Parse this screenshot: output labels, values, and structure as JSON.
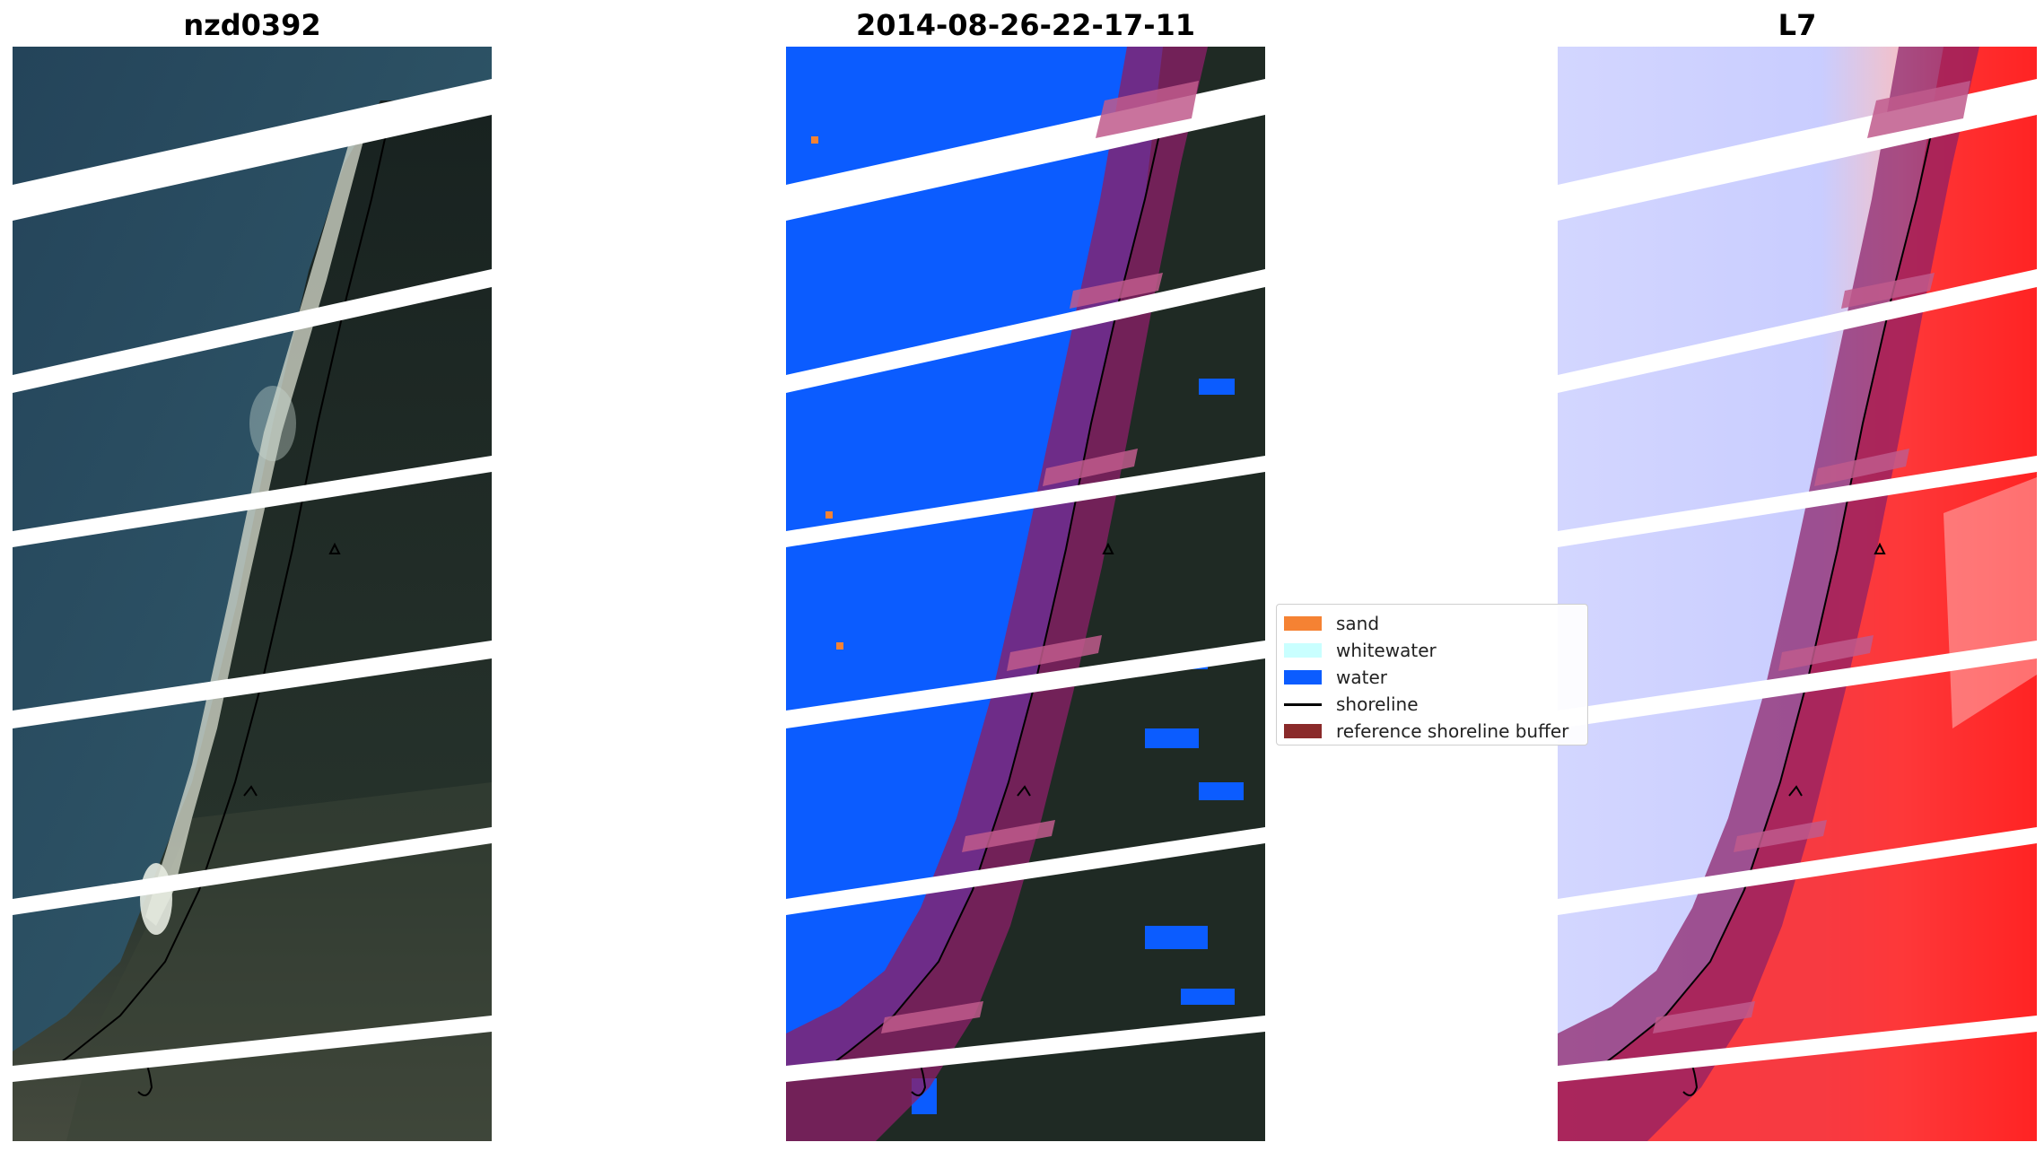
{
  "panels": {
    "left": {
      "title": "nzd0392",
      "kind": "rgb-image"
    },
    "middle": {
      "title": "2014-08-26-22-17-11",
      "kind": "classified-image"
    },
    "right": {
      "title": "L7",
      "kind": "mndwi-image"
    }
  },
  "legend": {
    "items": [
      {
        "label": "sand",
        "color": "#f58233",
        "type": "patch"
      },
      {
        "label": "whitewater",
        "color": "#c9ffff",
        "type": "patch"
      },
      {
        "label": "water",
        "color": "#0b5cff",
        "type": "patch"
      },
      {
        "label": "shoreline",
        "color": "#000000",
        "type": "line"
      },
      {
        "label": "reference shoreline buffer",
        "color": "#8a2a2a",
        "type": "patch"
      }
    ]
  },
  "colors": {
    "ocean": "#2a4a5a",
    "land": "#1f2a24",
    "water_class": "#0b5cff",
    "buffer": "#8a1f66",
    "mndwi_water": "#cfd2ff",
    "mndwi_land": "#ff2020",
    "stripe_gap": "#ffffff"
  }
}
